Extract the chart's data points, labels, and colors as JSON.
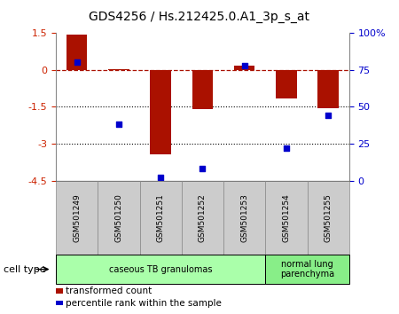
{
  "title": "GDS4256 / Hs.212425.0.A1_3p_s_at",
  "samples": [
    "GSM501249",
    "GSM501250",
    "GSM501251",
    "GSM501252",
    "GSM501253",
    "GSM501254",
    "GSM501255"
  ],
  "transformed_counts": [
    1.45,
    0.03,
    -3.45,
    -1.6,
    0.18,
    -1.15,
    -1.55
  ],
  "percentile_ranks": [
    80,
    38,
    2,
    8,
    78,
    22,
    44
  ],
  "bar_color": "#aa1100",
  "dot_color": "#0000cc",
  "ylim_left": [
    -4.5,
    1.5
  ],
  "ylim_right": [
    0,
    100
  ],
  "yticks_left": [
    1.5,
    0,
    -1.5,
    -3,
    -4.5
  ],
  "yticks_right": [
    0,
    25,
    50,
    75,
    100
  ],
  "dotted_lines": [
    -1.5,
    -3
  ],
  "cell_types": [
    {
      "label": "caseous TB granulomas",
      "samples_range": [
        0,
        4
      ],
      "color": "#aaffaa"
    },
    {
      "label": "normal lung\nparenchyma",
      "samples_range": [
        5,
        6
      ],
      "color": "#88ee88"
    }
  ],
  "cell_type_label": "cell type",
  "legend_items": [
    {
      "color": "#aa1100",
      "label": "transformed count"
    },
    {
      "color": "#0000cc",
      "label": "percentile rank within the sample"
    }
  ],
  "tick_label_color_left": "#cc2200",
  "tick_label_color_right": "#0000cc",
  "bar_width": 0.5,
  "xticklabel_bg": "#cccccc",
  "xticklabel_border": "#888888"
}
